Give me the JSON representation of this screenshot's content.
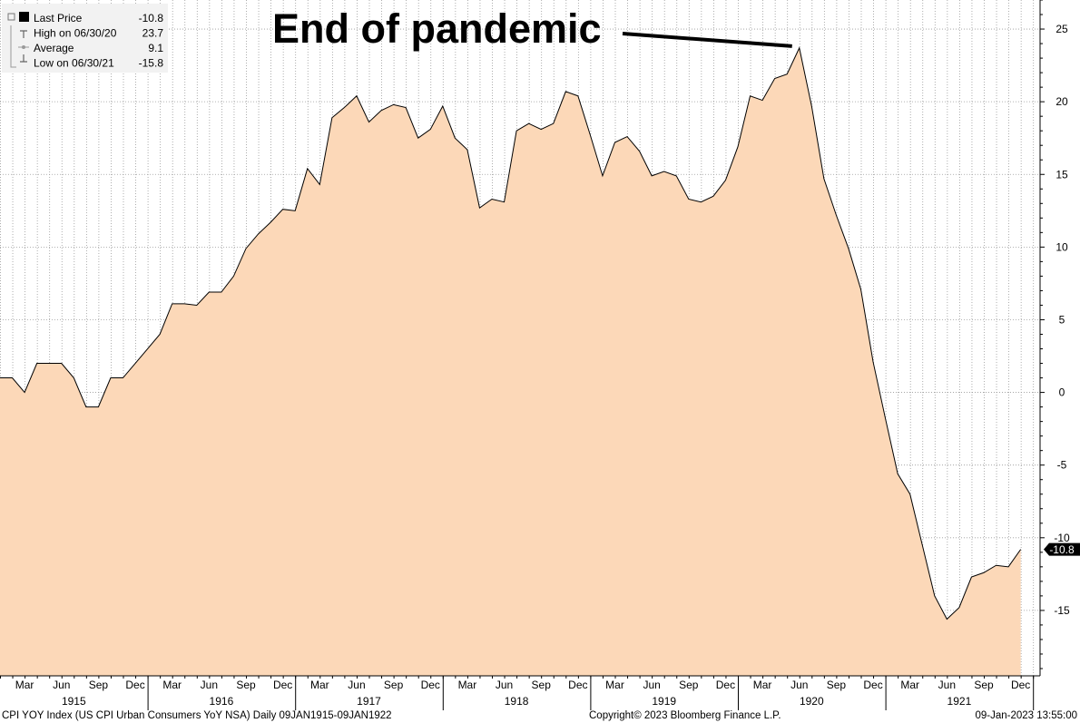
{
  "chart_data": {
    "type": "area",
    "title": "",
    "xlabel": "",
    "ylabel": "",
    "ylim": [
      -19.5,
      27
    ],
    "y_ticks": [
      25,
      20,
      15,
      10,
      5,
      0,
      -5,
      -10,
      -15
    ],
    "grid": true,
    "x_tick_labels": [
      "Mar",
      "Jun",
      "Sep",
      "Dec",
      "Mar",
      "Jun",
      "Sep",
      "Dec",
      "Mar",
      "Jun",
      "Sep",
      "Dec",
      "Mar",
      "Jun",
      "Sep",
      "Dec",
      "Mar",
      "Jun",
      "Sep",
      "Dec",
      "Mar",
      "Jun",
      "Sep",
      "Dec",
      "Mar",
      "Jun",
      "Sep",
      "Dec"
    ],
    "year_labels": [
      "1915",
      "1916",
      "1917",
      "1918",
      "1919",
      "1920",
      "1921"
    ],
    "series": [
      {
        "name": "CPI YOY Index",
        "color": "#fcd8b8",
        "line_color": "#000000",
        "values": [
          1.0,
          1.0,
          0.0,
          2.0,
          2.0,
          2.0,
          1.0,
          -1.0,
          -1.0,
          1.0,
          1.0,
          2.0,
          3.0,
          4.0,
          6.1,
          6.1,
          6.0,
          6.9,
          6.9,
          8.0,
          9.9,
          10.9,
          11.7,
          12.6,
          12.5,
          15.4,
          14.3,
          18.9,
          19.6,
          20.4,
          18.6,
          19.4,
          19.8,
          19.6,
          17.5,
          18.1,
          19.7,
          17.5,
          16.7,
          12.7,
          13.3,
          13.1,
          18.0,
          18.5,
          18.1,
          18.5,
          20.7,
          20.4,
          17.7,
          14.9,
          17.2,
          17.6,
          16.6,
          14.9,
          15.2,
          14.9,
          13.3,
          13.1,
          13.5,
          14.6,
          16.9,
          20.4,
          20.1,
          21.6,
          21.9,
          23.7,
          19.7,
          14.7,
          12.2,
          9.9,
          7.1,
          2.1,
          -1.8,
          -5.6,
          -7.0,
          -10.5,
          -14.0,
          -15.6,
          -14.8,
          -12.7,
          -12.4,
          -11.9,
          -12.0,
          -10.8
        ]
      }
    ],
    "legend": {
      "placement": "top-left",
      "entries": [
        {
          "label": "Last Price",
          "value": "-10.8"
        },
        {
          "label": "High on 06/30/20",
          "value": "23.7"
        },
        {
          "label": "Average",
          "value": "9.1"
        },
        {
          "label": "Low on 06/30/21",
          "value": "-15.8"
        }
      ]
    },
    "annotation": {
      "text": "End of pandemic",
      "points_to_value": 23.7
    },
    "last_value_label": "-10.8",
    "footer": {
      "left": "CPI YOY Index (US CPI Urban Consumers YoY NSA)  Daily 09JAN1915-09JAN1922",
      "center": "Copyright© 2023 Bloomberg Finance L.P.",
      "right": "09-Jan-2023 13:55:00"
    }
  }
}
